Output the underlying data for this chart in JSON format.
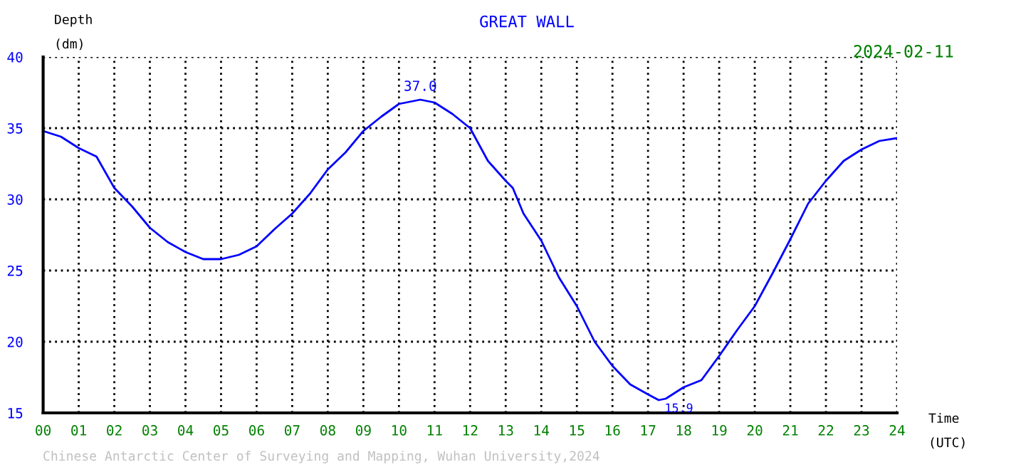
{
  "chart_data": {
    "type": "line",
    "title": "GREAT WALL",
    "ylabel": "Depth\n(dm)",
    "xlabel": "Time\n(UTC)",
    "annotations": [
      {
        "text": "37.0",
        "x": 10.6,
        "y": 37.0
      },
      {
        "text": "15.9",
        "x": 17.3,
        "y": 15.9
      },
      "2024-02-11",
      "Chinese Antarctic Center of Surveying and Mapping, Wuhan University,2024"
    ],
    "series": [
      {
        "color": "#0000ff",
        "x": [
          0,
          0.5,
          1,
          1.5,
          2,
          2.5,
          3,
          3.5,
          4,
          4.5,
          5,
          5.5,
          6,
          6.5,
          7,
          7.5,
          8,
          8.5,
          9,
          9.5,
          10,
          10.6,
          11,
          11.5,
          12,
          12.5,
          13,
          13.2,
          13.5,
          14,
          14.5,
          15,
          15.5,
          16,
          16.5,
          17,
          17.3,
          17.5,
          18,
          18.5,
          19,
          19.5,
          20,
          20.5,
          21,
          21.5,
          22,
          22.5,
          23,
          23.5,
          24
        ],
        "values": [
          34.8,
          34.4,
          33.6,
          33.0,
          30.8,
          29.5,
          28.0,
          27.0,
          26.3,
          25.8,
          25.8,
          26.1,
          26.7,
          27.9,
          29.0,
          30.4,
          32.1,
          33.3,
          34.8,
          35.8,
          36.7,
          37.0,
          36.8,
          36.0,
          35.0,
          32.7,
          31.3,
          30.8,
          29.0,
          27.1,
          24.5,
          22.5,
          20.0,
          18.3,
          17.0,
          16.3,
          15.9,
          16.0,
          16.8,
          17.3,
          19.0,
          20.8,
          22.5,
          24.8,
          27.2,
          29.7,
          31.3,
          32.7,
          33.5,
          34.1,
          34.3
        ]
      }
    ],
    "xlim": [
      0,
      24
    ],
    "ylim": [
      15,
      40
    ],
    "xticks": [
      {
        "value": 0,
        "label": "00"
      },
      {
        "value": 1,
        "label": "01"
      },
      {
        "value": 2,
        "label": "02"
      },
      {
        "value": 3,
        "label": "03"
      },
      {
        "value": 4,
        "label": "04"
      },
      {
        "value": 5,
        "label": "05"
      },
      {
        "value": 6,
        "label": "06"
      },
      {
        "value": 7,
        "label": "07"
      },
      {
        "value": 8,
        "label": "08"
      },
      {
        "value": 9,
        "label": "09"
      },
      10,
      11,
      12,
      13,
      14,
      15,
      16,
      17,
      18,
      19,
      20,
      21,
      22,
      23,
      24
    ],
    "yticks": [
      15,
      20,
      25,
      30,
      35,
      40
    ],
    "grid": true,
    "marker": "none",
    "line_style": "solid"
  }
}
